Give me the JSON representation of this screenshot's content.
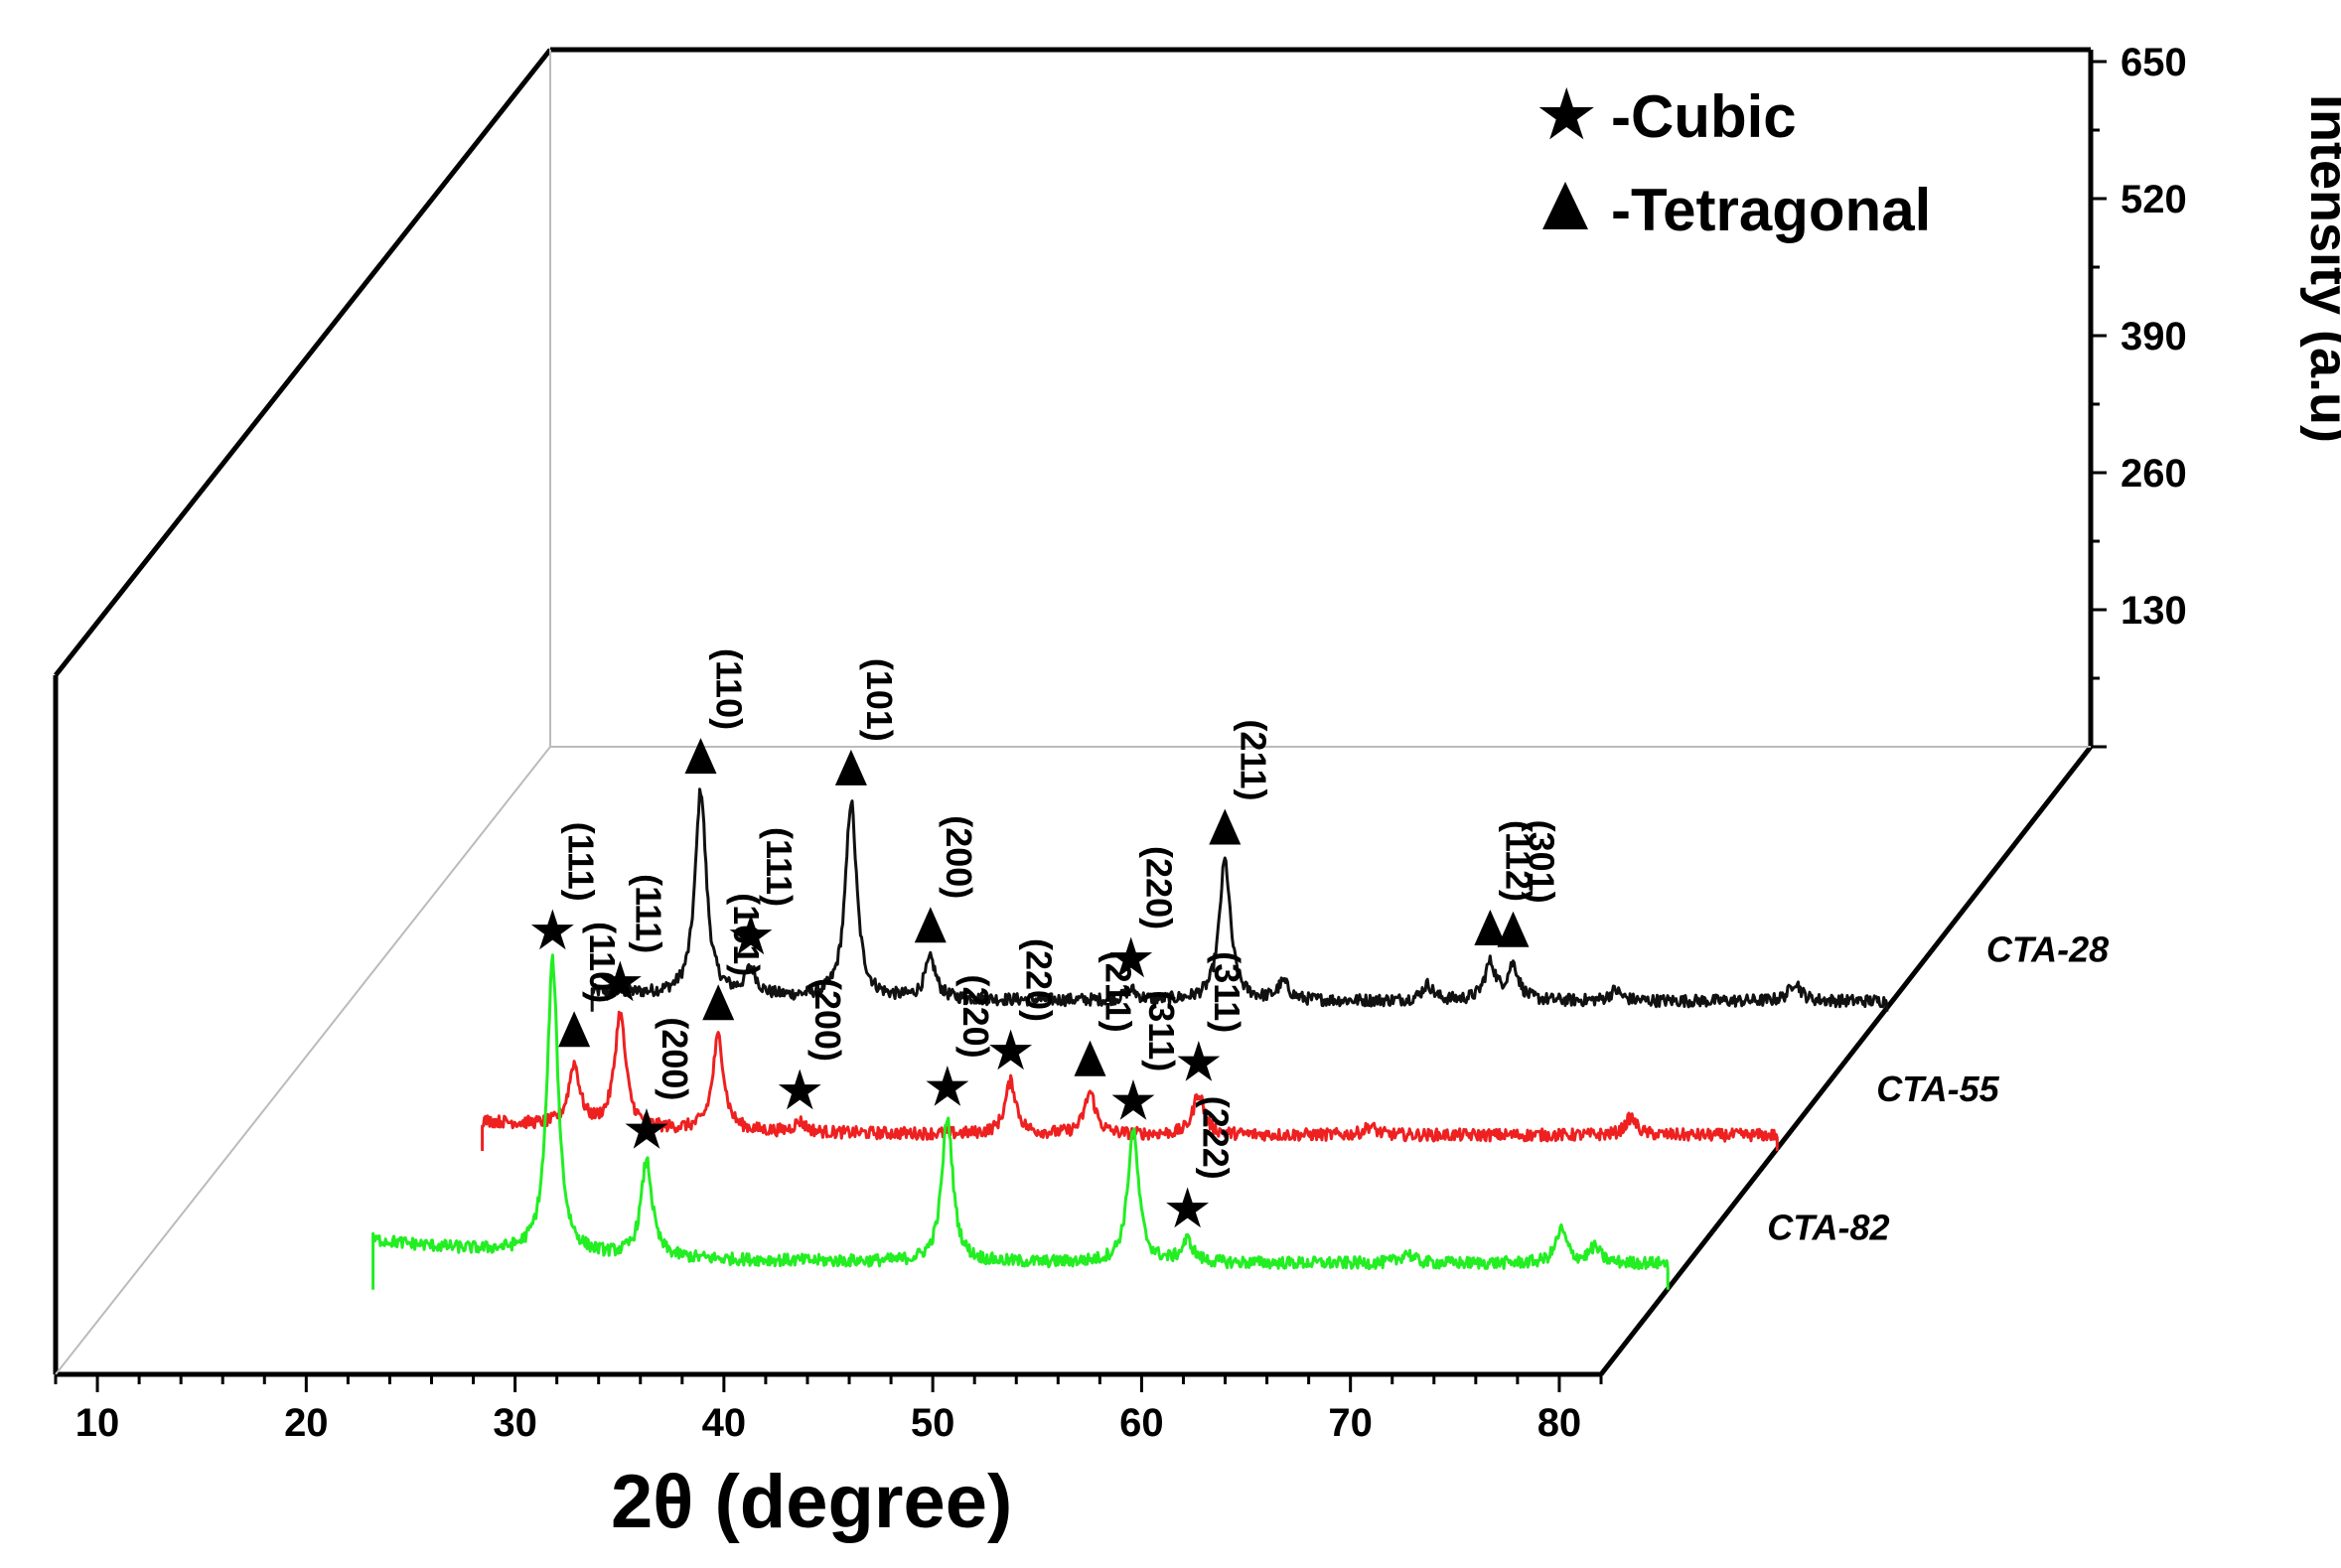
{
  "chart_data": {
    "type": "line",
    "style": "3D stacked waterfall XRD patterns",
    "xlabel": "2θ (degree)",
    "ylabel": "Intensity (a.u)",
    "x_ticks": [
      10,
      20,
      30,
      40,
      50,
      60,
      70,
      80
    ],
    "xlim": [
      8,
      82
    ],
    "y_ticks": [
      130,
      260,
      390,
      520,
      650
    ],
    "ylim": [
      0,
      650
    ],
    "legend": [
      {
        "symbol": "★",
        "label": "-Cubic",
        "name": "cubic"
      },
      {
        "symbol": "▲",
        "label": "-Tetragonal",
        "name": "tetragonal"
      }
    ],
    "series": [
      {
        "name": "CTA-82",
        "color": "#22ee22",
        "x_range": [
          20,
          82
        ],
        "baseline": 30,
        "peaks": [
          {
            "x": 28.6,
            "y": 335,
            "marker": "star",
            "label": "(111)"
          },
          {
            "x": 33.1,
            "y": 110,
            "marker": "star",
            "label": "(200)"
          },
          {
            "x": 47.5,
            "y": 165,
            "marker": "star",
            "label": "(220)"
          },
          {
            "x": 56.4,
            "y": 150,
            "marker": "star",
            "label": "(311)"
          },
          {
            "x": 59.0,
            "y": 25,
            "marker": "star",
            "label": "(222)"
          },
          {
            "x": 69.5,
            "y": 12,
            "marker": null,
            "label": ""
          },
          {
            "x": 76.9,
            "y": 38,
            "marker": null,
            "label": ""
          },
          {
            "x": 78.5,
            "y": 18,
            "marker": null,
            "label": ""
          }
        ]
      },
      {
        "name": "CTA-55",
        "color": "#ee2020",
        "x_range": [
          20,
          82
        ],
        "baseline": 18,
        "peaks": [
          {
            "x": 24.4,
            "y": 70,
            "marker": "triangle",
            "label": "(110)"
          },
          {
            "x": 26.6,
            "y": 130,
            "marker": "star",
            "label": "(111)"
          },
          {
            "x": 31.3,
            "y": 108,
            "marker": "triangle",
            "label": "(101)"
          },
          {
            "x": 35.2,
            "y": 12,
            "marker": "star",
            "label": "(200)"
          },
          {
            "x": 45.3,
            "y": 60,
            "marker": "star",
            "label": "(220)"
          },
          {
            "x": 49.1,
            "y": 48,
            "marker": "triangle",
            "label": "(211)"
          },
          {
            "x": 54.3,
            "y": 48,
            "marker": "star",
            "label": "(311)"
          },
          {
            "x": 62.5,
            "y": 10,
            "marker": null,
            "label": ""
          },
          {
            "x": 75.0,
            "y": 20,
            "marker": null,
            "label": ""
          }
        ]
      },
      {
        "name": "CTA-28",
        "color": "#111111",
        "x_range": [
          20,
          82
        ],
        "baseline": 12,
        "peaks": [
          {
            "x": 25.2,
            "y": 235,
            "marker": "triangle",
            "label": "(110)"
          },
          {
            "x": 27.6,
            "y": 30,
            "marker": "star",
            "label": "(111)"
          },
          {
            "x": 32.4,
            "y": 225,
            "marker": "triangle",
            "label": "(101)"
          },
          {
            "x": 36.2,
            "y": 45,
            "marker": "triangle",
            "label": "(200)"
          },
          {
            "x": 45.8,
            "y": 12,
            "marker": "star",
            "label": "(220)"
          },
          {
            "x": 50.3,
            "y": 160,
            "marker": "triangle",
            "label": "(211)"
          },
          {
            "x": 53.1,
            "y": 20,
            "marker": null,
            "label": ""
          },
          {
            "x": 60.0,
            "y": 18,
            "marker": null,
            "label": ""
          },
          {
            "x": 63.0,
            "y": 42,
            "marker": "triangle",
            "label": "(112)"
          },
          {
            "x": 64.1,
            "y": 40,
            "marker": "triangle",
            "label": "(301)"
          },
          {
            "x": 69.0,
            "y": 12,
            "marker": null,
            "label": ""
          },
          {
            "x": 77.6,
            "y": 22,
            "marker": null,
            "label": ""
          }
        ]
      }
    ]
  }
}
